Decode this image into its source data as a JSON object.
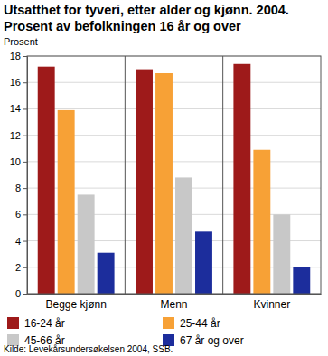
{
  "chart_data": {
    "type": "bar",
    "title": "Utsatthet for tyveri, etter alder og kjønn. 2004. Prosent av befolkningen 16 år og over",
    "y_label": "Prosent",
    "source": "Kilde: Levekårsundersøkelsen 2004, SSB.",
    "categories": [
      "Begge kjønn",
      "Menn",
      "Kvinner"
    ],
    "series": [
      {
        "name": "16-24 år",
        "color": "#9e1a1a",
        "values": [
          17.2,
          17.0,
          17.4
        ]
      },
      {
        "name": "25-44 år",
        "color": "#f7a136",
        "values": [
          13.9,
          16.7,
          10.9
        ]
      },
      {
        "name": "45-66 år",
        "color": "#c8c8c8",
        "values": [
          7.5,
          8.8,
          6.0
        ]
      },
      {
        "name": "67 år og over",
        "color": "#1c2d9c",
        "values": [
          3.1,
          4.7,
          2.0
        ]
      }
    ],
    "ylim": [
      0,
      18
    ],
    "yticks": [
      0,
      2,
      4,
      6,
      8,
      10,
      12,
      14,
      16,
      18
    ],
    "grid": true,
    "legend": "bottom"
  }
}
